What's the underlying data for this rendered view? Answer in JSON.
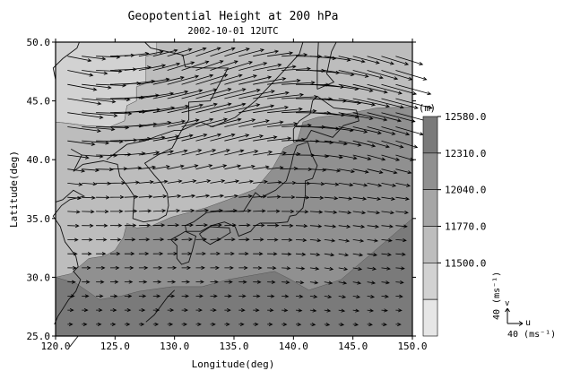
{
  "title": "Geopotential Height at 200 hPa",
  "subtitle": "2002-10-01 12UTC",
  "chart_data": {
    "type": "heatmap",
    "variable": "Geopotential Height",
    "level": "200 hPa",
    "datetime": "2002-10-01 12UTC",
    "xlabel": "Longitude(deg)",
    "ylabel": "Latitude(deg)",
    "xlim": [
      120.0,
      150.0
    ],
    "ylim": [
      25.0,
      50.0
    ],
    "x_ticks": [
      "120.0",
      "125.0",
      "130.0",
      "135.0",
      "140.0",
      "145.0",
      "150.0"
    ],
    "y_ticks": [
      "25.0",
      "30.0",
      "35.0",
      "40.0",
      "45.0",
      "50.0"
    ],
    "colorbar": {
      "unit": "(m)",
      "levels": [
        "11500.0",
        "11770.0",
        "12040.0",
        "12310.0",
        "12580.0"
      ],
      "bins": [
        {
          "from": 11230,
          "to": 11500,
          "color": "#e6e6e6"
        },
        {
          "from": 11500,
          "to": 11770,
          "color": "#d2d2d2"
        },
        {
          "from": 11770,
          "to": 12040,
          "color": "#bdbdbd"
        },
        {
          "from": 12040,
          "to": 12310,
          "color": "#a6a6a6"
        },
        {
          "from": 12310,
          "to": 12580,
          "color": "#909090"
        },
        {
          "from": 12580,
          "to": 12850,
          "color": "#7a7a7a"
        }
      ]
    },
    "wind": {
      "u_label": "u",
      "v_label": "v",
      "ref_label": "40 (ms⁻¹)",
      "ref_speed": 40
    }
  }
}
